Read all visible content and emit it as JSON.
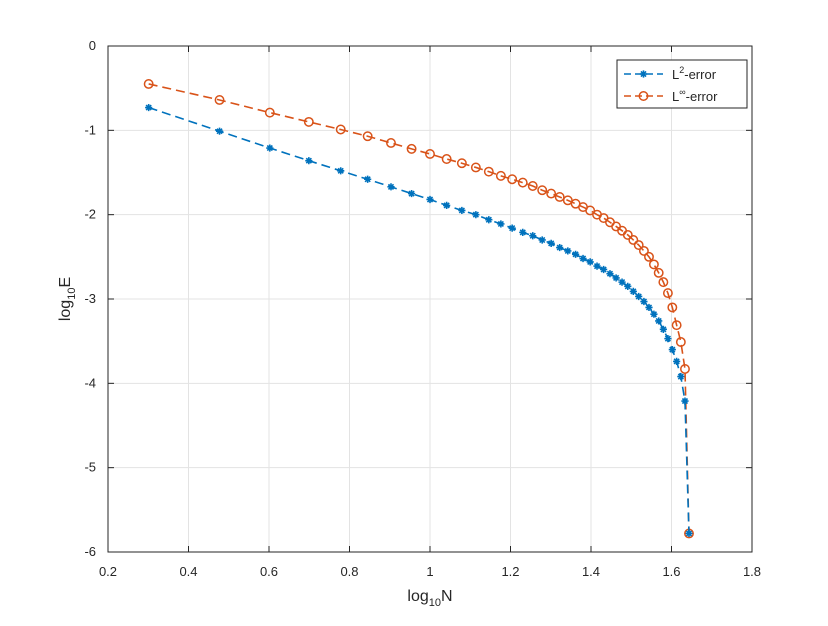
{
  "chart_data": {
    "type": "line",
    "xlabel": {
      "base": "log",
      "sub": "10",
      "tail": "N"
    },
    "ylabel": {
      "base": "log",
      "sub": "10",
      "tail": "E"
    },
    "xlim": [
      0.2,
      1.8
    ],
    "ylim": [
      -6,
      0
    ],
    "xticks": [
      "0.2",
      "0.4",
      "0.6",
      "0.8",
      "1",
      "1.2",
      "1.4",
      "1.6",
      "1.8"
    ],
    "yticks": [
      "0",
      "-1",
      "-2",
      "-3",
      "-4",
      "-5",
      "-6"
    ],
    "grid": true,
    "legend_position": "top-right",
    "series": [
      {
        "name": "L2-error",
        "legend": {
          "base": "L",
          "sup": "2",
          "tail": "-error"
        },
        "color": "#0072BD",
        "marker": "asterisk",
        "x_from": 2,
        "x_to": 50,
        "x_transform": "log10",
        "y": [
          -0.73,
          -1.01,
          -1.21,
          -1.36,
          -1.48,
          -1.58,
          -1.67,
          -1.75,
          -1.82,
          -1.89,
          -1.95,
          -2.0,
          -2.06,
          -2.11,
          -2.16,
          -2.21,
          -2.25,
          -2.3,
          -2.34,
          -2.39,
          -2.43,
          -2.47,
          -2.52,
          -2.56,
          -2.61,
          -2.65,
          -2.7,
          -2.75,
          -2.8,
          -2.85,
          -2.91,
          -2.97,
          -3.03,
          -3.1,
          -3.18,
          -3.26,
          -3.36,
          -3.47,
          -3.6,
          -3.74,
          -3.92,
          -4.21,
          -5.78
        ]
      },
      {
        "name": "Linf-error",
        "legend": {
          "base": "L",
          "sup": "∞",
          "tail": "-error"
        },
        "color": "#D95319",
        "marker": "circle",
        "x_from": 2,
        "x_to": 50,
        "x_transform": "log10",
        "y": [
          -0.45,
          -0.64,
          -0.79,
          -0.9,
          -0.99,
          -1.07,
          -1.15,
          -1.22,
          -1.28,
          -1.34,
          -1.39,
          -1.44,
          -1.49,
          -1.54,
          -1.58,
          -1.62,
          -1.66,
          -1.71,
          -1.75,
          -1.79,
          -1.83,
          -1.87,
          -1.91,
          -1.95,
          -2.0,
          -2.04,
          -2.09,
          -2.14,
          -2.19,
          -2.24,
          -2.3,
          -2.36,
          -2.43,
          -2.5,
          -2.59,
          -2.69,
          -2.8,
          -2.93,
          -3.1,
          -3.31,
          -3.51,
          -3.83,
          -5.78
        ]
      }
    ]
  }
}
